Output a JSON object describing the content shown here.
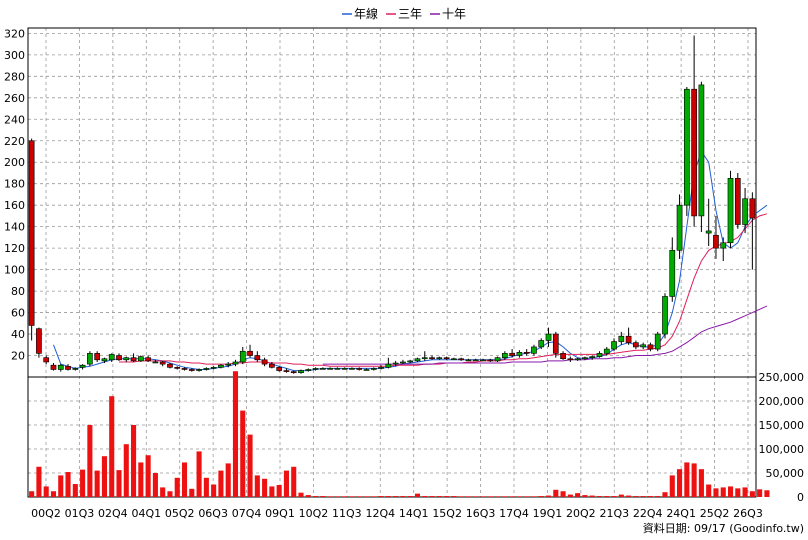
{
  "legend": [
    {
      "label": "年線",
      "color": "#1f5fd6"
    },
    {
      "label": "三年",
      "color": "#e0205a"
    },
    {
      "label": "十年",
      "color": "#8a1aa8"
    }
  ],
  "footer": "資料日期: 09/17  (Goodinfo.tw)",
  "chart_data": {
    "type": "candlestick+bar",
    "price_axis": {
      "ticks": [
        20,
        40,
        60,
        80,
        100,
        120,
        140,
        160,
        180,
        200,
        220,
        240,
        260,
        280,
        300,
        320
      ],
      "range": [
        0,
        325
      ]
    },
    "volume_axis": {
      "ticks": [
        "0",
        "50,000",
        "100,000",
        "150,000",
        "200,000",
        "250,000"
      ],
      "range": [
        0,
        250000
      ]
    },
    "x_labels": [
      "00Q2",
      "01Q3",
      "02Q4",
      "04Q1",
      "05Q2",
      "06Q3",
      "07Q4",
      "09Q1",
      "10Q2",
      "11Q3",
      "12Q4",
      "14Q1",
      "15Q2",
      "16Q3",
      "17Q4",
      "19Q1",
      "20Q2",
      "21Q3",
      "22Q4",
      "24Q1",
      "25Q2",
      "26Q3"
    ],
    "up_color": "#00aa00",
    "down_color": "#cc0000",
    "volume_color": "#ee1111",
    "candles": [
      {
        "o": 220,
        "h": 222,
        "l": 34,
        "c": 48
      },
      {
        "o": 45,
        "h": 46,
        "l": 18,
        "c": 22
      },
      {
        "o": 18,
        "h": 20,
        "l": 12,
        "c": 14
      },
      {
        "o": 11,
        "h": 13,
        "l": 6,
        "c": 7
      },
      {
        "o": 7,
        "h": 12,
        "l": 5,
        "c": 11
      },
      {
        "o": 10,
        "h": 12,
        "l": 6,
        "c": 7
      },
      {
        "o": 7,
        "h": 9,
        "l": 6,
        "c": 8
      },
      {
        "o": 9,
        "h": 12,
        "l": 7,
        "c": 11
      },
      {
        "o": 12,
        "h": 24,
        "l": 10,
        "c": 22
      },
      {
        "o": 22,
        "h": 24,
        "l": 14,
        "c": 16
      },
      {
        "o": 15,
        "h": 18,
        "l": 13,
        "c": 17
      },
      {
        "o": 16,
        "h": 22,
        "l": 14,
        "c": 21
      },
      {
        "o": 20,
        "h": 22,
        "l": 15,
        "c": 16
      },
      {
        "o": 16,
        "h": 19,
        "l": 14,
        "c": 18
      },
      {
        "o": 18,
        "h": 22,
        "l": 14,
        "c": 15
      },
      {
        "o": 15,
        "h": 20,
        "l": 14,
        "c": 19
      },
      {
        "o": 18,
        "h": 20,
        "l": 14,
        "c": 15
      },
      {
        "o": 14,
        "h": 16,
        "l": 13,
        "c": 14
      },
      {
        "o": 14,
        "h": 15,
        "l": 10,
        "c": 12
      },
      {
        "o": 12,
        "h": 13,
        "l": 8,
        "c": 9
      },
      {
        "o": 9,
        "h": 10,
        "l": 7,
        "c": 8
      },
      {
        "o": 8,
        "h": 9,
        "l": 6,
        "c": 7
      },
      {
        "o": 7,
        "h": 8,
        "l": 5,
        "c": 6
      },
      {
        "o": 6,
        "h": 8,
        "l": 5,
        "c": 7
      },
      {
        "o": 7,
        "h": 9,
        "l": 6,
        "c": 8
      },
      {
        "o": 8,
        "h": 10,
        "l": 7,
        "c": 9
      },
      {
        "o": 9,
        "h": 12,
        "l": 8,
        "c": 11
      },
      {
        "o": 11,
        "h": 14,
        "l": 9,
        "c": 12
      },
      {
        "o": 12,
        "h": 16,
        "l": 10,
        "c": 14
      },
      {
        "o": 14,
        "h": 28,
        "l": 12,
        "c": 24
      },
      {
        "o": 24,
        "h": 30,
        "l": 18,
        "c": 20
      },
      {
        "o": 20,
        "h": 24,
        "l": 14,
        "c": 16
      },
      {
        "o": 16,
        "h": 18,
        "l": 10,
        "c": 12
      },
      {
        "o": 12,
        "h": 14,
        "l": 8,
        "c": 9
      },
      {
        "o": 9,
        "h": 10,
        "l": 5,
        "c": 6
      },
      {
        "o": 6,
        "h": 8,
        "l": 4,
        "c": 5
      },
      {
        "o": 5,
        "h": 6,
        "l": 3,
        "c": 4
      },
      {
        "o": 4,
        "h": 7,
        "l": 3,
        "c": 6
      },
      {
        "o": 6,
        "h": 8,
        "l": 5,
        "c": 7
      },
      {
        "o": 7,
        "h": 9,
        "l": 6,
        "c": 8
      },
      {
        "o": 8,
        "h": 9,
        "l": 7,
        "c": 8
      },
      {
        "o": 8,
        "h": 9,
        "l": 7,
        "c": 8
      },
      {
        "o": 8,
        "h": 9,
        "l": 7,
        "c": 8
      },
      {
        "o": 8,
        "h": 9,
        "l": 7,
        "c": 8
      },
      {
        "o": 8,
        "h": 9,
        "l": 7,
        "c": 8
      },
      {
        "o": 8,
        "h": 9,
        "l": 6,
        "c": 7
      },
      {
        "o": 7,
        "h": 8,
        "l": 6,
        "c": 7
      },
      {
        "o": 7,
        "h": 9,
        "l": 6,
        "c": 8
      },
      {
        "o": 8,
        "h": 11,
        "l": 7,
        "c": 9
      },
      {
        "o": 9,
        "h": 18,
        "l": 8,
        "c": 12
      },
      {
        "o": 12,
        "h": 15,
        "l": 10,
        "c": 13
      },
      {
        "o": 13,
        "h": 16,
        "l": 12,
        "c": 14
      },
      {
        "o": 14,
        "h": 16,
        "l": 13,
        "c": 15
      },
      {
        "o": 15,
        "h": 18,
        "l": 14,
        "c": 17
      },
      {
        "o": 17,
        "h": 24,
        "l": 15,
        "c": 18
      },
      {
        "o": 18,
        "h": 20,
        "l": 16,
        "c": 17
      },
      {
        "o": 17,
        "h": 19,
        "l": 16,
        "c": 18
      },
      {
        "o": 18,
        "h": 19,
        "l": 16,
        "c": 17
      },
      {
        "o": 17,
        "h": 18,
        "l": 16,
        "c": 17
      },
      {
        "o": 17,
        "h": 18,
        "l": 15,
        "c": 16
      },
      {
        "o": 16,
        "h": 17,
        "l": 15,
        "c": 16
      },
      {
        "o": 16,
        "h": 17,
        "l": 15,
        "c": 16
      },
      {
        "o": 16,
        "h": 17,
        "l": 15,
        "c": 16
      },
      {
        "o": 16,
        "h": 17,
        "l": 14,
        "c": 15
      },
      {
        "o": 15,
        "h": 19,
        "l": 14,
        "c": 18
      },
      {
        "o": 18,
        "h": 24,
        "l": 16,
        "c": 22
      },
      {
        "o": 22,
        "h": 26,
        "l": 18,
        "c": 20
      },
      {
        "o": 20,
        "h": 25,
        "l": 18,
        "c": 23
      },
      {
        "o": 23,
        "h": 26,
        "l": 20,
        "c": 22
      },
      {
        "o": 22,
        "h": 30,
        "l": 20,
        "c": 28
      },
      {
        "o": 28,
        "h": 36,
        "l": 26,
        "c": 34
      },
      {
        "o": 34,
        "h": 46,
        "l": 28,
        "c": 40
      },
      {
        "o": 40,
        "h": 42,
        "l": 18,
        "c": 22
      },
      {
        "o": 22,
        "h": 24,
        "l": 16,
        "c": 17
      },
      {
        "o": 17,
        "h": 19,
        "l": 14,
        "c": 16
      },
      {
        "o": 16,
        "h": 18,
        "l": 15,
        "c": 17
      },
      {
        "o": 17,
        "h": 19,
        "l": 16,
        "c": 18
      },
      {
        "o": 18,
        "h": 20,
        "l": 16,
        "c": 19
      },
      {
        "o": 19,
        "h": 24,
        "l": 18,
        "c": 22
      },
      {
        "o": 22,
        "h": 28,
        "l": 20,
        "c": 26
      },
      {
        "o": 26,
        "h": 36,
        "l": 24,
        "c": 33
      },
      {
        "o": 33,
        "h": 42,
        "l": 30,
        "c": 38
      },
      {
        "o": 38,
        "h": 46,
        "l": 30,
        "c": 32
      },
      {
        "o": 32,
        "h": 34,
        "l": 26,
        "c": 28
      },
      {
        "o": 28,
        "h": 32,
        "l": 26,
        "c": 30
      },
      {
        "o": 30,
        "h": 32,
        "l": 24,
        "c": 26
      },
      {
        "o": 26,
        "h": 42,
        "l": 24,
        "c": 40
      },
      {
        "o": 40,
        "h": 78,
        "l": 36,
        "c": 75
      },
      {
        "o": 75,
        "h": 130,
        "l": 70,
        "c": 118
      },
      {
        "o": 118,
        "h": 170,
        "l": 110,
        "c": 160
      },
      {
        "o": 160,
        "h": 270,
        "l": 150,
        "c": 268
      },
      {
        "o": 268,
        "h": 318,
        "l": 140,
        "c": 150
      },
      {
        "o": 150,
        "h": 275,
        "l": 135,
        "c": 272
      },
      {
        "o": 134,
        "h": 166,
        "l": 122,
        "c": 136
      },
      {
        "o": 132,
        "h": 150,
        "l": 110,
        "c": 120
      },
      {
        "o": 120,
        "h": 130,
        "l": 108,
        "c": 125
      },
      {
        "o": 125,
        "h": 192,
        "l": 120,
        "c": 185
      },
      {
        "o": 185,
        "h": 190,
        "l": 138,
        "c": 142
      },
      {
        "o": 142,
        "h": 176,
        "l": 134,
        "c": 166
      },
      {
        "o": 166,
        "h": 172,
        "l": 100,
        "c": 148
      }
    ],
    "volume": [
      12000,
      63000,
      22000,
      12000,
      45000,
      52000,
      27000,
      57000,
      150000,
      55000,
      85000,
      210000,
      56000,
      110000,
      150000,
      72000,
      87000,
      50000,
      20000,
      12000,
      40000,
      72000,
      17000,
      95000,
      40000,
      26000,
      55000,
      70000,
      262000,
      180000,
      130000,
      45000,
      38000,
      22000,
      25000,
      55000,
      63000,
      9000,
      4000,
      2000,
      2000,
      1500,
      1500,
      1500,
      1500,
      1500,
      1500,
      1500,
      2000,
      2000,
      2000,
      2000,
      2000,
      7000,
      2000,
      2000,
      2000,
      2000,
      2000,
      1500,
      1500,
      1500,
      1500,
      1500,
      1500,
      1500,
      1500,
      1500,
      1500,
      1500,
      2000,
      3000,
      15000,
      12000,
      5000,
      8000,
      4000,
      3000,
      2000,
      2000,
      2000,
      5000,
      3000,
      2000,
      2000,
      2000,
      2000,
      10000,
      45000,
      58000,
      72000,
      70000,
      58000,
      26000,
      18000,
      20000,
      22000,
      18000,
      20000,
      12000,
      16000,
      14000
    ],
    "ma_year": [
      null,
      null,
      null,
      30,
      12,
      10,
      8,
      9,
      10,
      12,
      14,
      16,
      17,
      17,
      17,
      17,
      17,
      16,
      15,
      13,
      11,
      9,
      8,
      7,
      7,
      8,
      9,
      10,
      12,
      16,
      18,
      17,
      15,
      12,
      10,
      8,
      6,
      6,
      6,
      7,
      8,
      8,
      8,
      8,
      8,
      8,
      8,
      8,
      8,
      9,
      10,
      12,
      13,
      14,
      15,
      16,
      16,
      16,
      16,
      16,
      16,
      16,
      16,
      16,
      16,
      17,
      19,
      21,
      22,
      24,
      28,
      32,
      33,
      28,
      22,
      18,
      17,
      18,
      19,
      21,
      26,
      30,
      32,
      30,
      28,
      28,
      30,
      40,
      60,
      90,
      140,
      190,
      210,
      200,
      155,
      125,
      120,
      125,
      140,
      150,
      155,
      160
    ],
    "ma_3y": [
      null,
      null,
      null,
      null,
      null,
      null,
      null,
      null,
      null,
      null,
      null,
      null,
      14,
      14,
      14,
      15,
      15,
      15,
      15,
      15,
      14,
      14,
      13,
      13,
      12,
      12,
      12,
      12,
      13,
      13,
      14,
      14,
      14,
      13,
      13,
      13,
      12,
      12,
      11,
      11,
      11,
      10,
      10,
      10,
      10,
      10,
      10,
      10,
      10,
      10,
      11,
      11,
      11,
      11,
      12,
      12,
      12,
      13,
      13,
      13,
      14,
      14,
      15,
      15,
      15,
      16,
      16,
      17,
      17,
      18,
      19,
      20,
      21,
      21,
      21,
      21,
      21,
      21,
      21,
      21,
      22,
      23,
      24,
      25,
      25,
      26,
      27,
      30,
      38,
      52,
      72,
      92,
      108,
      118,
      122,
      124,
      126,
      130,
      138,
      146,
      150,
      152
    ],
    "ma_10y": [
      null,
      null,
      null,
      null,
      null,
      null,
      null,
      null,
      null,
      null,
      null,
      null,
      null,
      null,
      null,
      null,
      null,
      null,
      null,
      null,
      null,
      null,
      null,
      null,
      null,
      null,
      null,
      null,
      null,
      null,
      null,
      null,
      null,
      null,
      null,
      null,
      null,
      null,
      null,
      null,
      12,
      12,
      12,
      12,
      12,
      12,
      12,
      12,
      12,
      12,
      12,
      12,
      12,
      12,
      12,
      12,
      13,
      13,
      13,
      13,
      13,
      13,
      13,
      13,
      13,
      13,
      14,
      14,
      14,
      14,
      14,
      15,
      15,
      15,
      16,
      16,
      16,
      17,
      17,
      17,
      18,
      18,
      19,
      20,
      20,
      20,
      21,
      22,
      24,
      28,
      32,
      37,
      42,
      45,
      47,
      49,
      51,
      54,
      57,
      60,
      63,
      66
    ]
  }
}
